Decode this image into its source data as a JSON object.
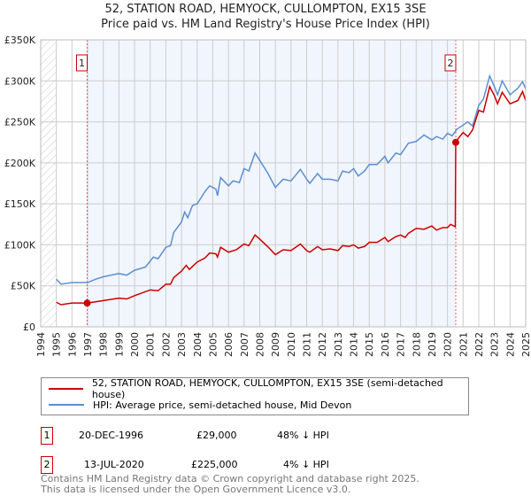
{
  "title": "52, STATION ROAD, HEMYOCK, CULLOMPTON, EX15 3SE",
  "subtitle": "Price paid vs. HM Land Registry's House Price Index (HPI)",
  "chart_data": {
    "type": "line",
    "xlim": [
      1994,
      2025
    ],
    "ylim": [
      0,
      350000
    ],
    "x_ticks": [
      "1994",
      "1995",
      "1996",
      "1997",
      "1998",
      "1999",
      "2000",
      "2001",
      "2002",
      "2003",
      "2004",
      "2005",
      "2006",
      "2007",
      "2008",
      "2009",
      "2010",
      "2011",
      "2012",
      "2013",
      "2014",
      "2015",
      "2016",
      "2017",
      "2018",
      "2019",
      "2020",
      "2021",
      "2022",
      "2023",
      "2024",
      "2025"
    ],
    "y_ticks": [
      {
        "v": 0,
        "label": "£0"
      },
      {
        "v": 50000,
        "label": "£50K"
      },
      {
        "v": 100000,
        "label": "£100K"
      },
      {
        "v": 150000,
        "label": "£150K"
      },
      {
        "v": 200000,
        "label": "£200K"
      },
      {
        "v": 250000,
        "label": "£250K"
      },
      {
        "v": 300000,
        "label": "£300K"
      },
      {
        "v": 350000,
        "label": "£350K"
      }
    ],
    "grid": true,
    "series": [
      {
        "name": "52, STATION ROAD, HEMYOCK, CULLOMPTON, EX15 3SE (semi-detached house)",
        "color": "#cc0000",
        "points": [
          [
            1995,
            30
          ],
          [
            1995.3,
            27
          ],
          [
            1996,
            29
          ],
          [
            1997,
            29
          ],
          [
            1998,
            32
          ],
          [
            1999,
            35
          ],
          [
            1999.5,
            34
          ],
          [
            2000,
            38
          ],
          [
            2001,
            45
          ],
          [
            2001.5,
            44
          ],
          [
            2002,
            52
          ],
          [
            2002.3,
            52
          ],
          [
            2002.5,
            60
          ],
          [
            2003,
            68
          ],
          [
            2003.3,
            75
          ],
          [
            2003.5,
            70
          ],
          [
            2004,
            79
          ],
          [
            2004.5,
            84
          ],
          [
            2004.8,
            90
          ],
          [
            2005.2,
            89
          ],
          [
            2005.3,
            85
          ],
          [
            2005.5,
            97
          ],
          [
            2006,
            91
          ],
          [
            2006.5,
            94
          ],
          [
            2007,
            101
          ],
          [
            2007.3,
            99
          ],
          [
            2007.7,
            112
          ],
          [
            2008,
            107
          ],
          [
            2008.5,
            98
          ],
          [
            2009,
            88
          ],
          [
            2009.5,
            94
          ],
          [
            2010,
            93
          ],
          [
            2010.6,
            101
          ],
          [
            2011,
            93
          ],
          [
            2011.2,
            91
          ],
          [
            2011.7,
            98
          ],
          [
            2012,
            94
          ],
          [
            2012.5,
            95
          ],
          [
            2013,
            93
          ],
          [
            2013.3,
            99
          ],
          [
            2013.7,
            98
          ],
          [
            2014,
            100
          ],
          [
            2014.3,
            96
          ],
          [
            2014.7,
            98
          ],
          [
            2015,
            103
          ],
          [
            2015.5,
            103
          ],
          [
            2016,
            109
          ],
          [
            2016.2,
            104
          ],
          [
            2016.7,
            110
          ],
          [
            2017,
            112
          ],
          [
            2017.3,
            109
          ],
          [
            2017.5,
            114
          ],
          [
            2018,
            120
          ],
          [
            2018.5,
            119
          ],
          [
            2019,
            123
          ],
          [
            2019.3,
            118
          ],
          [
            2019.7,
            121
          ],
          [
            2020,
            121
          ],
          [
            2020.2,
            125
          ],
          [
            2020.5,
            122
          ],
          [
            2020.53,
            225
          ],
          [
            2020.7,
            230
          ],
          [
            2021,
            237
          ],
          [
            2021.3,
            232
          ],
          [
            2021.6,
            240
          ],
          [
            2022,
            264
          ],
          [
            2022.3,
            262
          ],
          [
            2022.7,
            293
          ],
          [
            2023,
            282
          ],
          [
            2023.2,
            272
          ],
          [
            2023.5,
            286
          ],
          [
            2024,
            272
          ],
          [
            2024.5,
            276
          ],
          [
            2024.8,
            287
          ],
          [
            2025,
            276
          ]
        ]
      },
      {
        "name": "HPI: Average price, semi-detached house, Mid Devon",
        "color": "#5b8fd0",
        "points": [
          [
            1995,
            58
          ],
          [
            1995.3,
            52
          ],
          [
            1996,
            54
          ],
          [
            1997,
            54
          ],
          [
            1997.5,
            58
          ],
          [
            1998,
            61
          ],
          [
            1999,
            65
          ],
          [
            1999.5,
            63
          ],
          [
            2000,
            69
          ],
          [
            2000.7,
            73
          ],
          [
            2001.2,
            85
          ],
          [
            2001.5,
            83
          ],
          [
            2002,
            97
          ],
          [
            2002.3,
            99
          ],
          [
            2002.5,
            115
          ],
          [
            2003,
            128
          ],
          [
            2003.2,
            140
          ],
          [
            2003.4,
            133
          ],
          [
            2003.7,
            148
          ],
          [
            2004,
            150
          ],
          [
            2004.5,
            165
          ],
          [
            2004.8,
            172
          ],
          [
            2005.2,
            168
          ],
          [
            2005.3,
            160
          ],
          [
            2005.5,
            182
          ],
          [
            2006,
            172
          ],
          [
            2006.3,
            178
          ],
          [
            2006.7,
            176
          ],
          [
            2007,
            193
          ],
          [
            2007.3,
            190
          ],
          [
            2007.7,
            212
          ],
          [
            2008,
            203
          ],
          [
            2008.5,
            188
          ],
          [
            2009,
            170
          ],
          [
            2009.5,
            180
          ],
          [
            2010,
            178
          ],
          [
            2010.6,
            192
          ],
          [
            2011,
            180
          ],
          [
            2011.2,
            175
          ],
          [
            2011.7,
            187
          ],
          [
            2012,
            180
          ],
          [
            2012.5,
            180
          ],
          [
            2013,
            178
          ],
          [
            2013.3,
            190
          ],
          [
            2013.7,
            188
          ],
          [
            2014,
            193
          ],
          [
            2014.3,
            184
          ],
          [
            2014.7,
            190
          ],
          [
            2015,
            198
          ],
          [
            2015.5,
            198
          ],
          [
            2016,
            208
          ],
          [
            2016.2,
            200
          ],
          [
            2016.7,
            212
          ],
          [
            2017,
            210
          ],
          [
            2017.5,
            224
          ],
          [
            2018,
            226
          ],
          [
            2018.5,
            234
          ],
          [
            2019,
            228
          ],
          [
            2019.3,
            232
          ],
          [
            2019.7,
            229
          ],
          [
            2020,
            236
          ],
          [
            2020.3,
            233
          ],
          [
            2020.6,
            241
          ],
          [
            2021,
            246
          ],
          [
            2021.3,
            250
          ],
          [
            2021.6,
            245
          ],
          [
            2022,
            270
          ],
          [
            2022.3,
            278
          ],
          [
            2022.7,
            306
          ],
          [
            2023,
            293
          ],
          [
            2023.2,
            283
          ],
          [
            2023.5,
            300
          ],
          [
            2024,
            283
          ],
          [
            2024.5,
            291
          ],
          [
            2024.8,
            299
          ],
          [
            2025,
            290
          ]
        ]
      }
    ],
    "y_unit": "thousands GBP",
    "annotations": [
      {
        "label": "1",
        "x": 1996.97,
        "y": 29
      },
      {
        "label": "2",
        "x": 2020.53,
        "y": 225
      }
    ],
    "legend_placement": "below"
  },
  "legend": {
    "items": [
      "52, STATION ROAD, HEMYOCK, CULLOMPTON, EX15 3SE (semi-detached house)",
      "HPI: Average price, semi-detached house, Mid Devon"
    ]
  },
  "sales": [
    {
      "num": "1",
      "date": "20-DEC-1996",
      "price": "£29,000",
      "hpi": "48% ↓ HPI"
    },
    {
      "num": "2",
      "date": "13-JUL-2020",
      "price": "£225,000",
      "hpi": "4% ↓ HPI"
    }
  ],
  "footer": {
    "line1": "Contains HM Land Registry data © Crown copyright and database right 2025.",
    "line2": "This data is licensed under the Open Government Licence v3.0."
  }
}
